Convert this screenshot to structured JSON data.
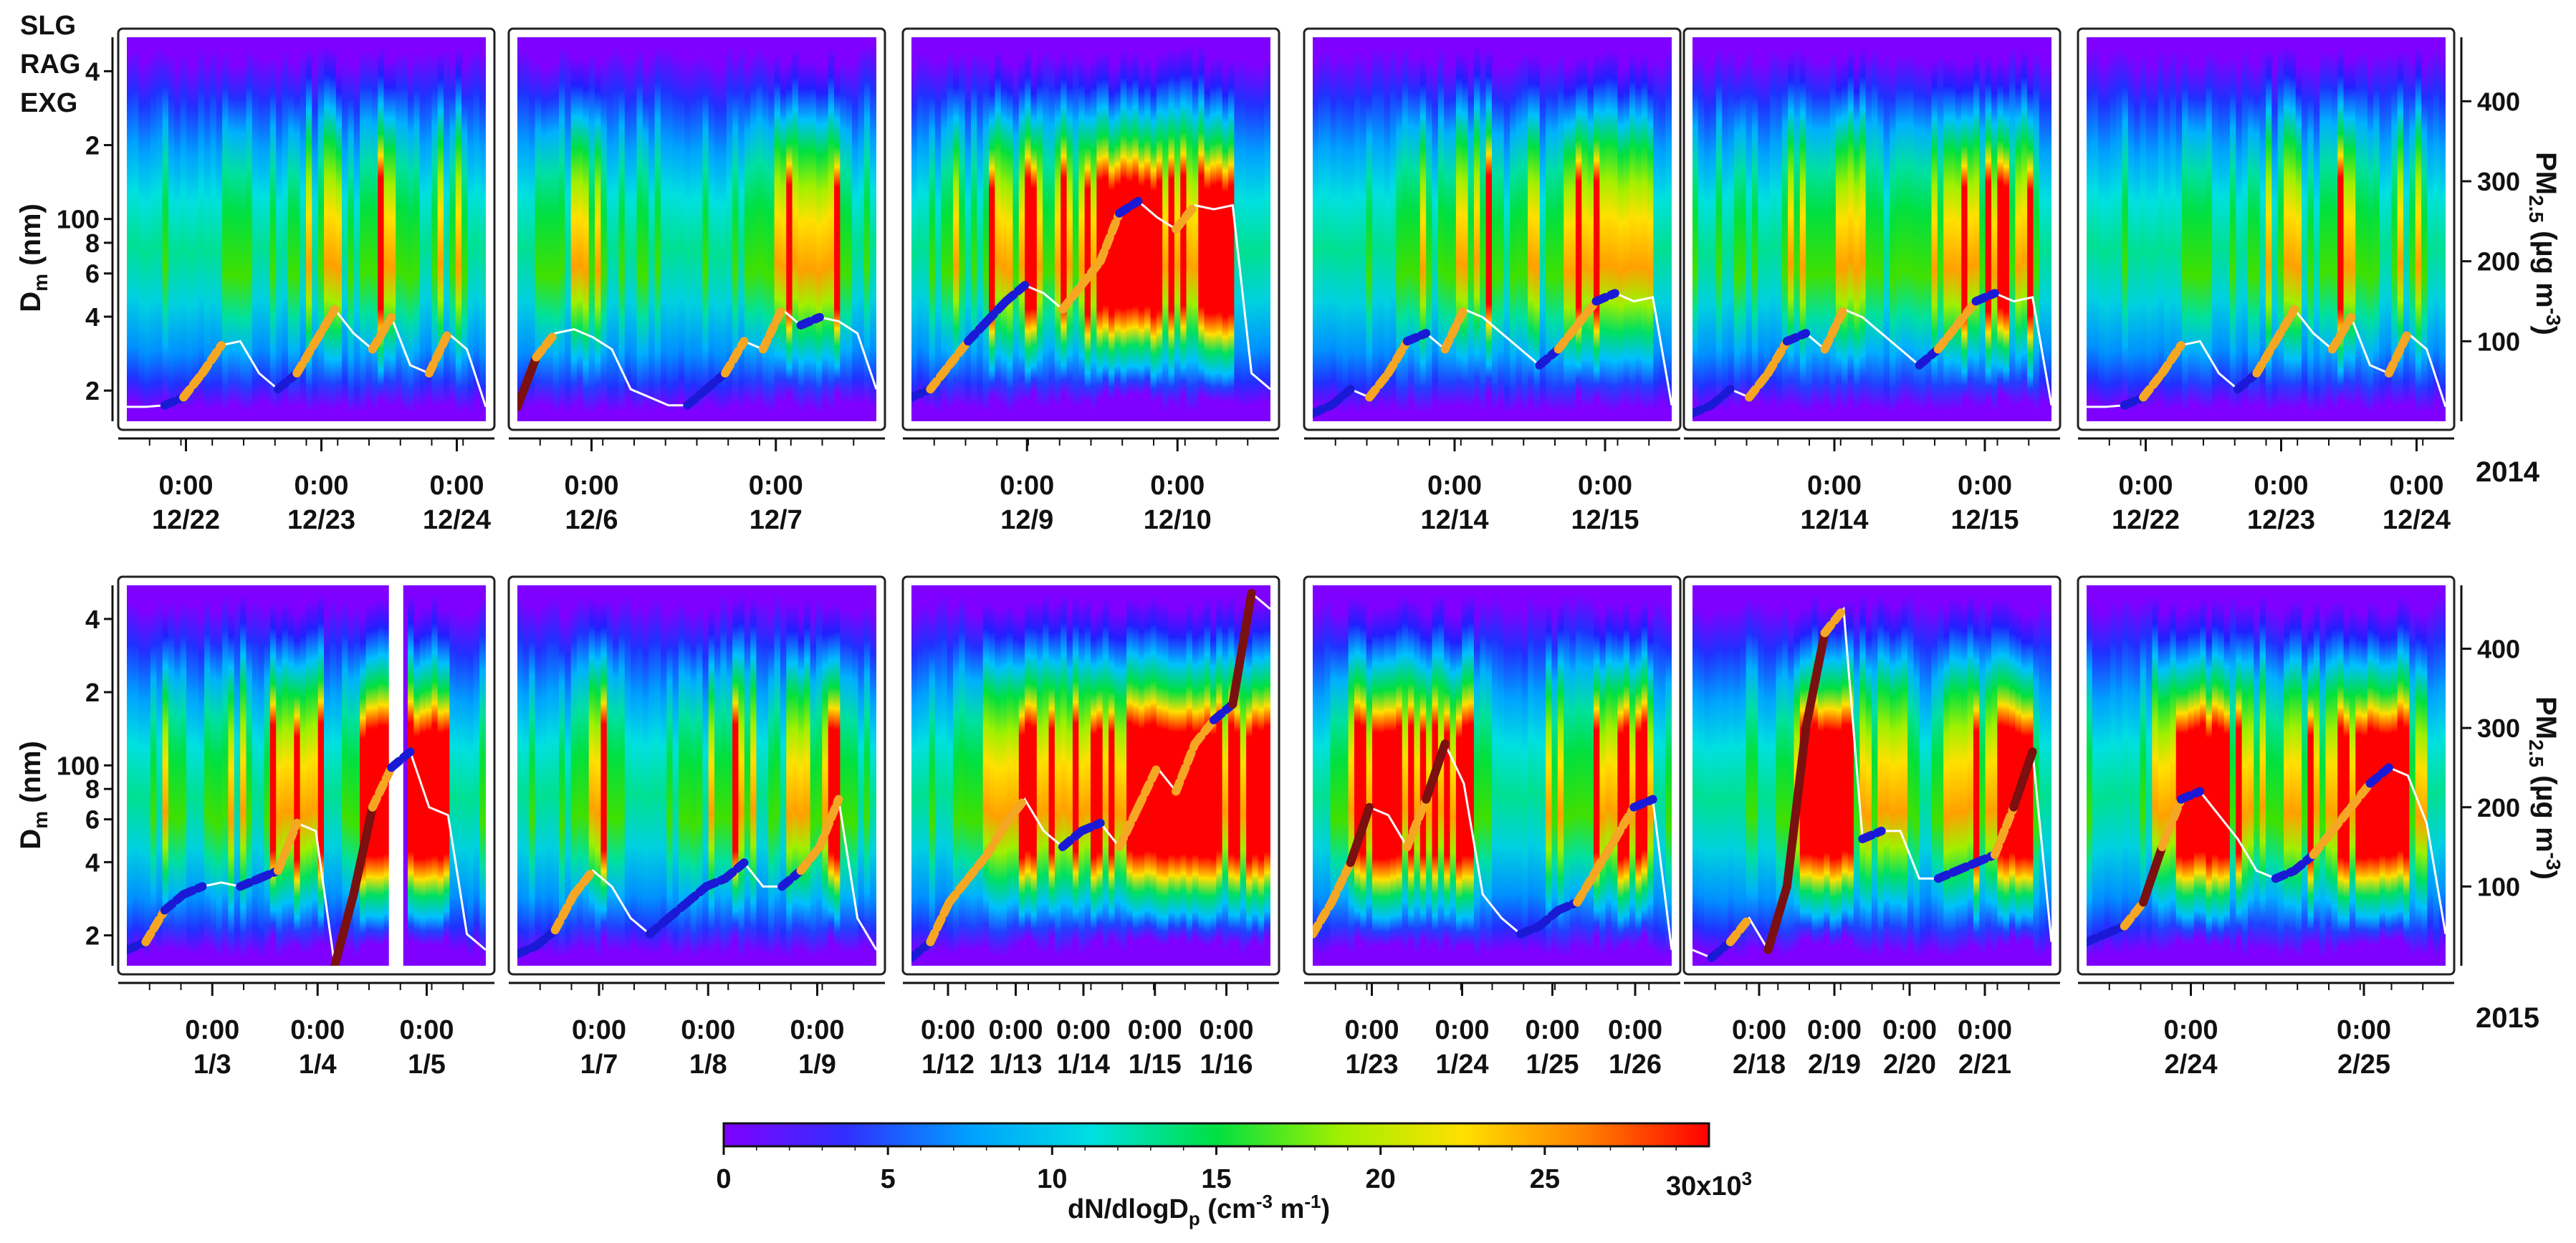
{
  "legend": [
    {
      "label": "SLG",
      "color": "#1a1ad6"
    },
    {
      "label": "RAG",
      "color": "#f5a623"
    },
    {
      "label": "EXG",
      "color": "#7a1010"
    }
  ],
  "years": {
    "row1": "2014",
    "row2": "2015"
  },
  "colorbar": {
    "label_main": "dN/dlogD",
    "label_sub": "p",
    "label_units": " (cm",
    "label_exp1": "-3",
    "label_mid": "  m",
    "label_exp2": "-1",
    "label_close": ")",
    "ticks": [
      "0",
      "5",
      "10",
      "15",
      "20",
      "25"
    ],
    "max_label": "30x10",
    "max_exp": "3",
    "colors": [
      "#8000ff",
      "#3030ff",
      "#00a0ff",
      "#00e0e0",
      "#00e040",
      "#a0f000",
      "#ffe000",
      "#ff8000",
      "#ff0000"
    ]
  },
  "chart_data": {
    "type": "heatmap",
    "description_units": "particle size distribution, Dm (nm) on log left axis, PM2.5 (µg m-3) on right axis",
    "left_axis": {
      "label": "D",
      "label_sub": "m",
      "label_tail": " (nm)",
      "ticks": [
        {
          "v": 20,
          "t": "2"
        },
        {
          "v": 40,
          "t": "4"
        },
        {
          "v": 60,
          "t": "6"
        },
        {
          "v": 80,
          "t": "8"
        },
        {
          "v": 100,
          "t": "100"
        },
        {
          "v": 200,
          "t": "2"
        },
        {
          "v": 400,
          "t": "4"
        }
      ],
      "range": [
        15,
        550
      ]
    },
    "right_axis": {
      "label": "PM",
      "label_sub": "2.5",
      "label_tail": " (µg m",
      "label_exp": "-3",
      "label_close": ")",
      "ticks": [
        100,
        200,
        300,
        400
      ],
      "range": [
        0,
        480
      ]
    },
    "panels": [
      {
        "id": "r1p1",
        "row": 1,
        "ticks": [
          {
            "pos": 0.18,
            "time": "0:00",
            "date": "12/22"
          },
          {
            "pos": 0.54,
            "time": "0:00",
            "date": "12/23"
          },
          {
            "pos": 0.9,
            "time": "0:00",
            "date": "12/24"
          }
        ],
        "pm25": [
          18,
          18,
          20,
          30,
          60,
          95,
          100,
          60,
          40,
          60,
          100,
          140,
          110,
          90,
          130,
          70,
          60,
          110,
          90,
          18
        ],
        "seed": 1
      },
      {
        "id": "r1p2",
        "row": 1,
        "ticks": [
          {
            "pos": 0.22,
            "time": "0:00",
            "date": "12/6"
          },
          {
            "pos": 0.71,
            "time": "0:00",
            "date": "12/7"
          }
        ],
        "pm25": [
          18,
          80,
          110,
          115,
          105,
          90,
          40,
          30,
          20,
          20,
          40,
          60,
          100,
          90,
          140,
          120,
          130,
          125,
          110,
          40
        ],
        "seed": 2
      },
      {
        "id": "r1p3",
        "row": 1,
        "ticks": [
          {
            "pos": 0.33,
            "time": "0:00",
            "date": "12/9"
          },
          {
            "pos": 0.73,
            "time": "0:00",
            "date": "12/10"
          }
        ],
        "pm25": [
          30,
          40,
          70,
          100,
          125,
          150,
          170,
          160,
          140,
          170,
          200,
          260,
          275,
          255,
          240,
          270,
          265,
          270,
          60,
          40
        ],
        "seed": 3
      },
      {
        "id": "r1p4",
        "row": 1,
        "ticks": [
          {
            "pos": 0.4,
            "time": "0:00",
            "date": "12/14"
          },
          {
            "pos": 0.8,
            "time": "0:00",
            "date": "12/15"
          }
        ],
        "pm25": [
          10,
          20,
          40,
          30,
          60,
          100,
          110,
          90,
          140,
          130,
          110,
          90,
          70,
          90,
          120,
          150,
          160,
          150,
          155,
          20
        ],
        "seed": 4
      },
      {
        "id": "r1p5",
        "row": 1,
        "ticks": [
          {
            "pos": 0.4,
            "time": "0:00",
            "date": "12/14"
          },
          {
            "pos": 0.8,
            "time": "0:00",
            "date": "12/15"
          }
        ],
        "pm25": [
          10,
          20,
          40,
          30,
          60,
          100,
          110,
          90,
          140,
          130,
          110,
          90,
          70,
          90,
          120,
          150,
          160,
          150,
          155,
          20
        ],
        "seed": 5
      },
      {
        "id": "r1p6",
        "row": 1,
        "ticks": [
          {
            "pos": 0.18,
            "time": "0:00",
            "date": "12/22"
          },
          {
            "pos": 0.54,
            "time": "0:00",
            "date": "12/23"
          },
          {
            "pos": 0.9,
            "time": "0:00",
            "date": "12/24"
          }
        ],
        "pm25": [
          18,
          18,
          20,
          30,
          60,
          95,
          100,
          60,
          40,
          60,
          100,
          140,
          110,
          90,
          130,
          70,
          60,
          110,
          90,
          18
        ],
        "seed": 1
      },
      {
        "id": "r2p1",
        "row": 2,
        "gap": [
          0.73,
          0.77
        ],
        "ticks": [
          {
            "pos": 0.25,
            "time": "0:00",
            "date": "1/3"
          },
          {
            "pos": 0.53,
            "time": "0:00",
            "date": "1/4"
          },
          {
            "pos": 0.82,
            "time": "0:00",
            "date": "1/5"
          }
        ],
        "pm25": [
          20,
          30,
          70,
          90,
          100,
          105,
          100,
          110,
          120,
          180,
          170,
          0,
          90,
          200,
          250,
          270,
          200,
          190,
          40,
          20
        ],
        "seed": 6
      },
      {
        "id": "r2p2",
        "row": 2,
        "ticks": [
          {
            "pos": 0.24,
            "time": "0:00",
            "date": "1/7"
          },
          {
            "pos": 0.53,
            "time": "0:00",
            "date": "1/8"
          },
          {
            "pos": 0.82,
            "time": "0:00",
            "date": "1/9"
          }
        ],
        "pm25": [
          15,
          25,
          45,
          90,
          120,
          100,
          60,
          40,
          60,
          80,
          100,
          110,
          130,
          100,
          100,
          120,
          150,
          210,
          60,
          20
        ],
        "seed": 7
      },
      {
        "id": "r2p3",
        "row": 2,
        "ticks": [
          {
            "pos": 0.12,
            "time": "0:00",
            "date": "1/12"
          },
          {
            "pos": 0.3,
            "time": "0:00",
            "date": "1/13"
          },
          {
            "pos": 0.48,
            "time": "0:00",
            "date": "1/14"
          },
          {
            "pos": 0.67,
            "time": "0:00",
            "date": "1/15"
          },
          {
            "pos": 0.86,
            "time": "0:00",
            "date": "1/16"
          }
        ],
        "pm25": [
          10,
          30,
          80,
          110,
          140,
          180,
          210,
          170,
          150,
          170,
          180,
          150,
          200,
          250,
          220,
          280,
          310,
          330,
          470,
          450
        ],
        "seed": 8
      },
      {
        "id": "r2p4",
        "row": 2,
        "ticks": [
          {
            "pos": 0.18,
            "time": "0:00",
            "date": "1/23"
          },
          {
            "pos": 0.42,
            "time": "0:00",
            "date": "1/24"
          },
          {
            "pos": 0.66,
            "time": "0:00",
            "date": "1/25"
          },
          {
            "pos": 0.88,
            "time": "0:00",
            "date": "1/26"
          }
        ],
        "pm25": [
          40,
          80,
          130,
          200,
          190,
          150,
          210,
          280,
          230,
          90,
          60,
          40,
          50,
          70,
          80,
          120,
          160,
          200,
          210,
          20
        ],
        "seed": 9
      },
      {
        "id": "r2p5",
        "row": 2,
        "ticks": [
          {
            "pos": 0.2,
            "time": "0:00",
            "date": "2/18"
          },
          {
            "pos": 0.4,
            "time": "0:00",
            "date": "2/19"
          },
          {
            "pos": 0.6,
            "time": "0:00",
            "date": "2/20"
          },
          {
            "pos": 0.8,
            "time": "0:00",
            "date": "2/21"
          }
        ],
        "pm25": [
          20,
          10,
          30,
          60,
          20,
          100,
          300,
          420,
          450,
          160,
          170,
          170,
          110,
          110,
          120,
          130,
          140,
          200,
          270,
          30
        ],
        "seed": 10
      },
      {
        "id": "r2p6",
        "row": 2,
        "ticks": [
          {
            "pos": 0.3,
            "time": "0:00",
            "date": "2/24"
          },
          {
            "pos": 0.76,
            "time": "0:00",
            "date": "2/25"
          }
        ],
        "pm25": [
          30,
          40,
          50,
          80,
          150,
          210,
          220,
          190,
          160,
          120,
          110,
          120,
          140,
          170,
          200,
          230,
          250,
          240,
          180,
          40
        ],
        "seed": 11
      }
    ]
  }
}
